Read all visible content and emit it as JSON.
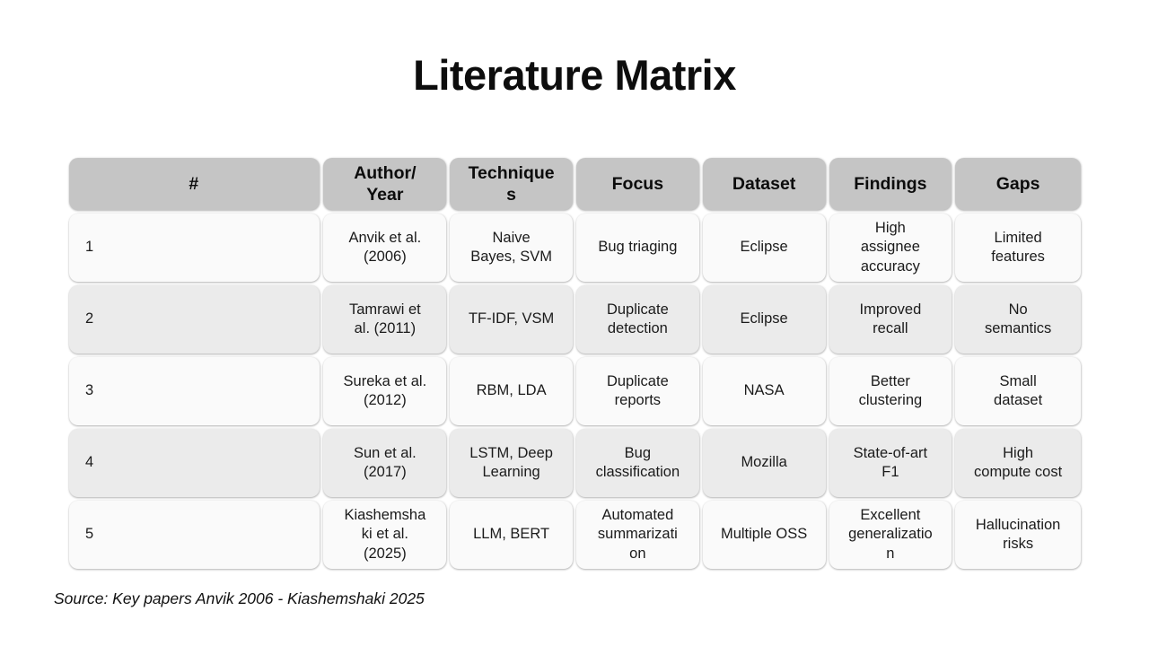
{
  "page": {
    "title": "Literature Matrix",
    "source": "Source: Key papers Anvik 2006 - Kiashemshaki 2025"
  },
  "table": {
    "headers": [
      "#",
      "Author/ Year",
      "Techniques",
      "Focus",
      "Dataset",
      "Findings",
      "Gaps"
    ],
    "rows": [
      [
        "1",
        "Anvik et al. (2006)",
        "Naive Bayes, SVM",
        "Bug triaging",
        "Eclipse",
        "High assignee accuracy",
        "Limited features"
      ],
      [
        "2",
        "Tamrawi et al. (2011)",
        "TF-IDF, VSM",
        "Duplicate detection",
        "Eclipse",
        "Improved recall",
        "No semantics"
      ],
      [
        "3",
        "Sureka et al. (2012)",
        "RBM, LDA",
        "Duplicate reports",
        "NASA",
        "Better clustering",
        "Small dataset"
      ],
      [
        "4",
        "Sun et al. (2017)",
        "LSTM, Deep Learning",
        "Bug classification",
        "Mozilla",
        "State-of-art F1",
        "High compute cost"
      ],
      [
        "5",
        "Kiashemshaki et al. (2025)",
        "LLM, BERT",
        "Automated summarization",
        "Multiple OSS",
        "Excellent generalization",
        "Hallucination risks"
      ]
    ]
  },
  "colors": {
    "header_bg": "#c5c5c5",
    "row_light": "#fafafa",
    "row_dark": "#ebebeb",
    "text": "#1b1b1b",
    "bg": "#ffffff"
  }
}
